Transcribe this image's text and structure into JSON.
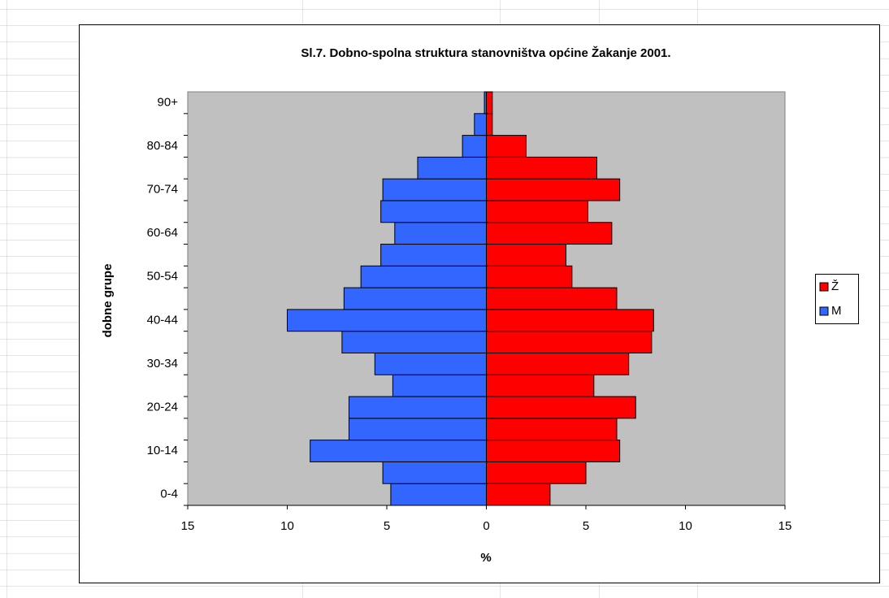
{
  "chart_data": {
    "type": "bar",
    "orientation": "horizontal",
    "title": "Sl.7. Dobno-spolna struktura stanovništva općine Žakanje 2001.",
    "ylabel": "dobne grupe",
    "xlabel": "%",
    "categories": [
      "0-4",
      null,
      "10-14",
      null,
      "20-24",
      null,
      "30-34",
      null,
      "40-44",
      null,
      "50-54",
      null,
      "60-64",
      null,
      "70-74",
      null,
      "80-84",
      null,
      "90+"
    ],
    "series": [
      {
        "name": "Ž",
        "color": "#ff0000",
        "values": [
          3.2,
          5.0,
          6.7,
          6.55,
          7.5,
          5.4,
          7.15,
          8.3,
          8.4,
          6.55,
          4.3,
          4.0,
          6.3,
          5.1,
          6.7,
          5.55,
          2.0,
          0.3,
          0.3
        ]
      },
      {
        "name": "M",
        "color": "#3366ff",
        "values": [
          -4.8,
          -5.2,
          -8.85,
          -6.9,
          -6.9,
          -4.7,
          -5.6,
          -7.25,
          -10.0,
          -7.15,
          -6.3,
          -5.3,
          -4.6,
          -5.3,
          -5.2,
          -3.45,
          -1.2,
          -0.6,
          -0.1
        ]
      }
    ],
    "xlim": [
      -15,
      15
    ],
    "xticks": [
      {
        "value": -15,
        "label": "15"
      },
      {
        "value": -10,
        "label": "10"
      },
      {
        "value": -5,
        "label": "5"
      },
      0,
      5,
      10,
      15
    ],
    "legend": "right"
  }
}
